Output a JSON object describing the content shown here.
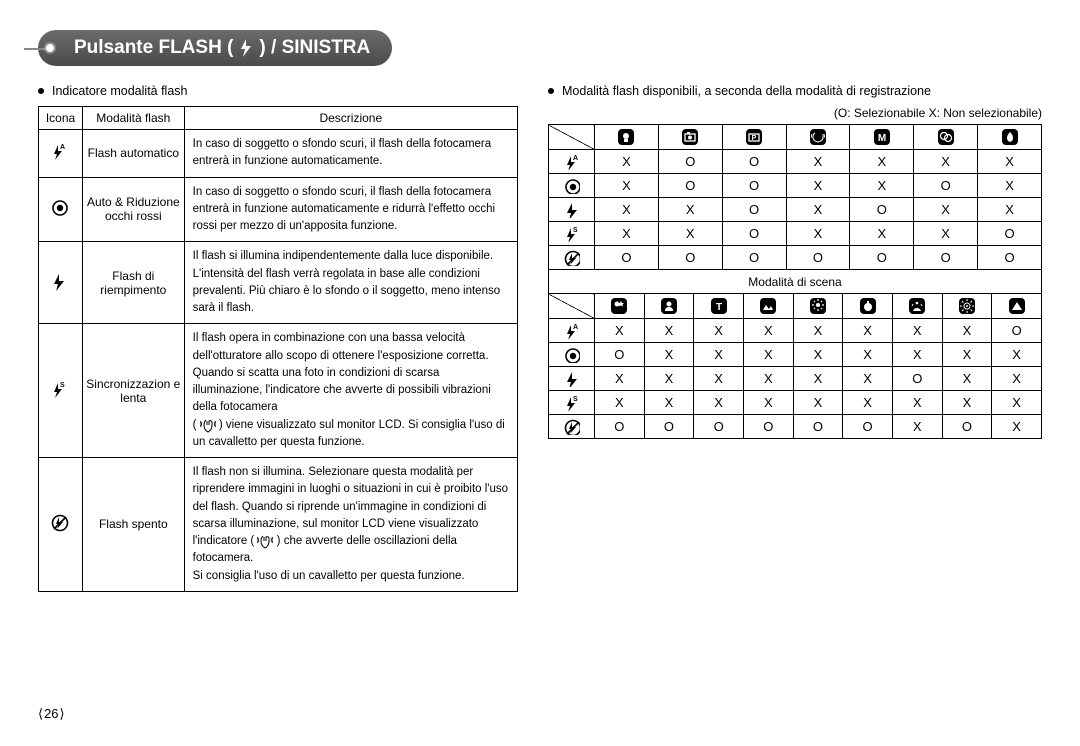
{
  "title": {
    "prefix": "Pulsante FLASH (",
    "suffix": ") / SINISTRA"
  },
  "left_section_label": "Indicatore modalità flash",
  "desc_table": {
    "headers": [
      "Icona",
      "Modalità flash",
      "Descrizione"
    ],
    "rows": [
      {
        "icon": "flash-auto",
        "mode": "Flash automatico",
        "desc": "In caso di soggetto o sfondo scuri, il flash della fotocamera entrerà in funzione automaticamente."
      },
      {
        "icon": "redeye",
        "mode": "Auto & Riduzione occhi rossi",
        "desc": "In caso di soggetto o sfondo scuri, il flash della fotocamera entrerà in funzione automaticamente e ridurrà l'effetto occhi rossi per mezzo di un'apposita funzione."
      },
      {
        "icon": "flash-fill",
        "mode": "Flash di riempimento",
        "desc": "Il flash si illumina indipendentemente dalla luce disponibile. L'intensità del flash verrà regolata in base alle condizioni prevalenti. Più chiaro è lo sfondo o il soggetto, meno intenso sarà il flash."
      },
      {
        "icon": "flash-slow",
        "mode": "Sincronizzazion e lenta",
        "desc_parts": {
          "a": "Il flash opera in combinazione con una bassa velocità dell'otturatore allo scopo di ottenere l'esposizione corretta. Quando si scatta una foto in condizioni di scarsa illuminazione, l'indicatore che avverte di possibili vibrazioni della fotocamera",
          "b": "(",
          "c": ") viene visualizzato sul monitor LCD. Si consiglia l'uso di un cavalletto per questa funzione."
        }
      },
      {
        "icon": "flash-off",
        "mode": "Flash spento",
        "desc_parts": {
          "a": "Il flash non si illumina. Selezionare questa modalità per riprendere immagini in luoghi o situazioni in cui è proibito l'uso del flash. Quando si riprende un'immagine in condizioni di scarsa illuminazione, sul monitor LCD viene visualizzato l'indicatore (",
          "b": ") che avverte delle oscillazioni della fotocamera.",
          "c": "Si consiglia l'uso di un cavalletto per questa funzione."
        }
      }
    ]
  },
  "right_section_label": "Modalità flash disponibili, a seconda della modalità di registrazione",
  "legend_note": "(O: Selezionabile X: Non selezionabile)",
  "avail_table1": {
    "col_icons": [
      "mode-auto",
      "mode-still",
      "mode-program",
      "mode-asr",
      "mode-manual",
      "mode-effect",
      "mode-scene"
    ],
    "row_icons": [
      "flash-auto",
      "redeye",
      "flash-fill",
      "flash-slow",
      "flash-off"
    ],
    "cells": [
      [
        "X",
        "O",
        "O",
        "X",
        "X",
        "X",
        "X"
      ],
      [
        "X",
        "O",
        "O",
        "X",
        "X",
        "O",
        "X"
      ],
      [
        "X",
        "X",
        "O",
        "X",
        "O",
        "X",
        "X"
      ],
      [
        "X",
        "X",
        "O",
        "X",
        "X",
        "X",
        "O"
      ],
      [
        "O",
        "O",
        "O",
        "O",
        "O",
        "O",
        "O"
      ]
    ]
  },
  "scene_header": "Modalità di scena",
  "avail_table2": {
    "col_icons": [
      "scene-night",
      "scene-portrait",
      "scene-children",
      "scene-landscape",
      "scene-closeup",
      "scene-text",
      "scene-sunset",
      "scene-dawn",
      "scene-backlight"
    ],
    "row_icons": [
      "flash-auto",
      "redeye",
      "flash-fill",
      "flash-slow",
      "flash-off"
    ],
    "cells": [
      [
        "X",
        "X",
        "X",
        "X",
        "X",
        "X",
        "X",
        "X",
        "O"
      ],
      [
        "O",
        "X",
        "X",
        "X",
        "X",
        "X",
        "X",
        "X",
        "X"
      ],
      [
        "X",
        "X",
        "X",
        "X",
        "X",
        "X",
        "O",
        "X",
        "X"
      ],
      [
        "X",
        "X",
        "X",
        "X",
        "X",
        "X",
        "X",
        "X",
        "X"
      ],
      [
        "O",
        "O",
        "O",
        "O",
        "O",
        "O",
        "X",
        "O",
        "X"
      ]
    ]
  },
  "page_number": "26"
}
